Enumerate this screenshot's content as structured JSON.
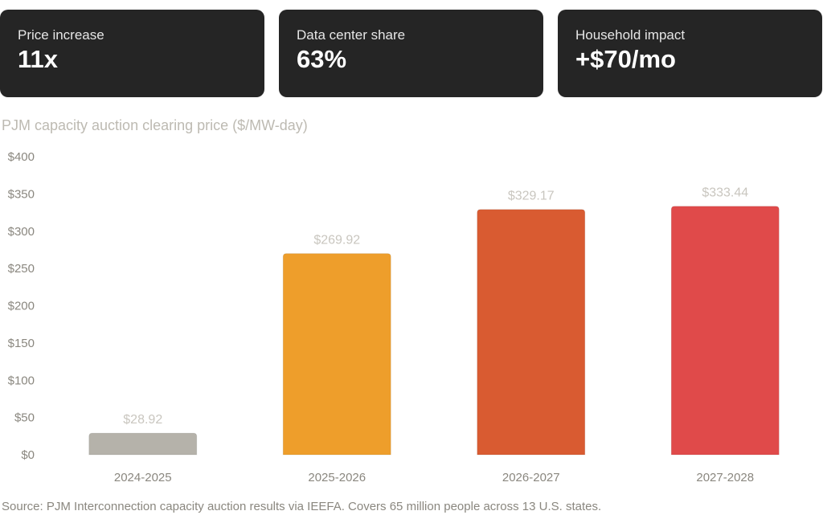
{
  "cards": [
    {
      "label": "Price increase",
      "value": "11x"
    },
    {
      "label": "Data center share",
      "value": "63%"
    },
    {
      "label": "Household impact",
      "value": "+$70/mo"
    }
  ],
  "chart_data": {
    "type": "bar",
    "title": "PJM capacity auction clearing price ($/MW-day)",
    "categories": [
      "2024-2025",
      "2025-2026",
      "2026-2027",
      "2027-2028"
    ],
    "values": [
      28.92,
      269.92,
      329.17,
      333.44
    ],
    "data_labels": [
      "$28.92",
      "$269.92",
      "$329.17",
      "$333.44"
    ],
    "colors": [
      "#b5b2aa",
      "#ee9e2b",
      "#d95b31",
      "#e04a4a"
    ],
    "ylim": [
      0,
      400
    ],
    "yticks": [
      0,
      50,
      100,
      150,
      200,
      250,
      300,
      350,
      400
    ],
    "ytick_labels": [
      "$0",
      "$50",
      "$100",
      "$150",
      "$200",
      "$250",
      "$300",
      "$350",
      "$400"
    ],
    "grid": false,
    "xlabel": "",
    "ylabel": ""
  },
  "source": "Source: PJM Interconnection capacity auction results via IEEFA. Covers 65 million people across 13 U.S. states."
}
